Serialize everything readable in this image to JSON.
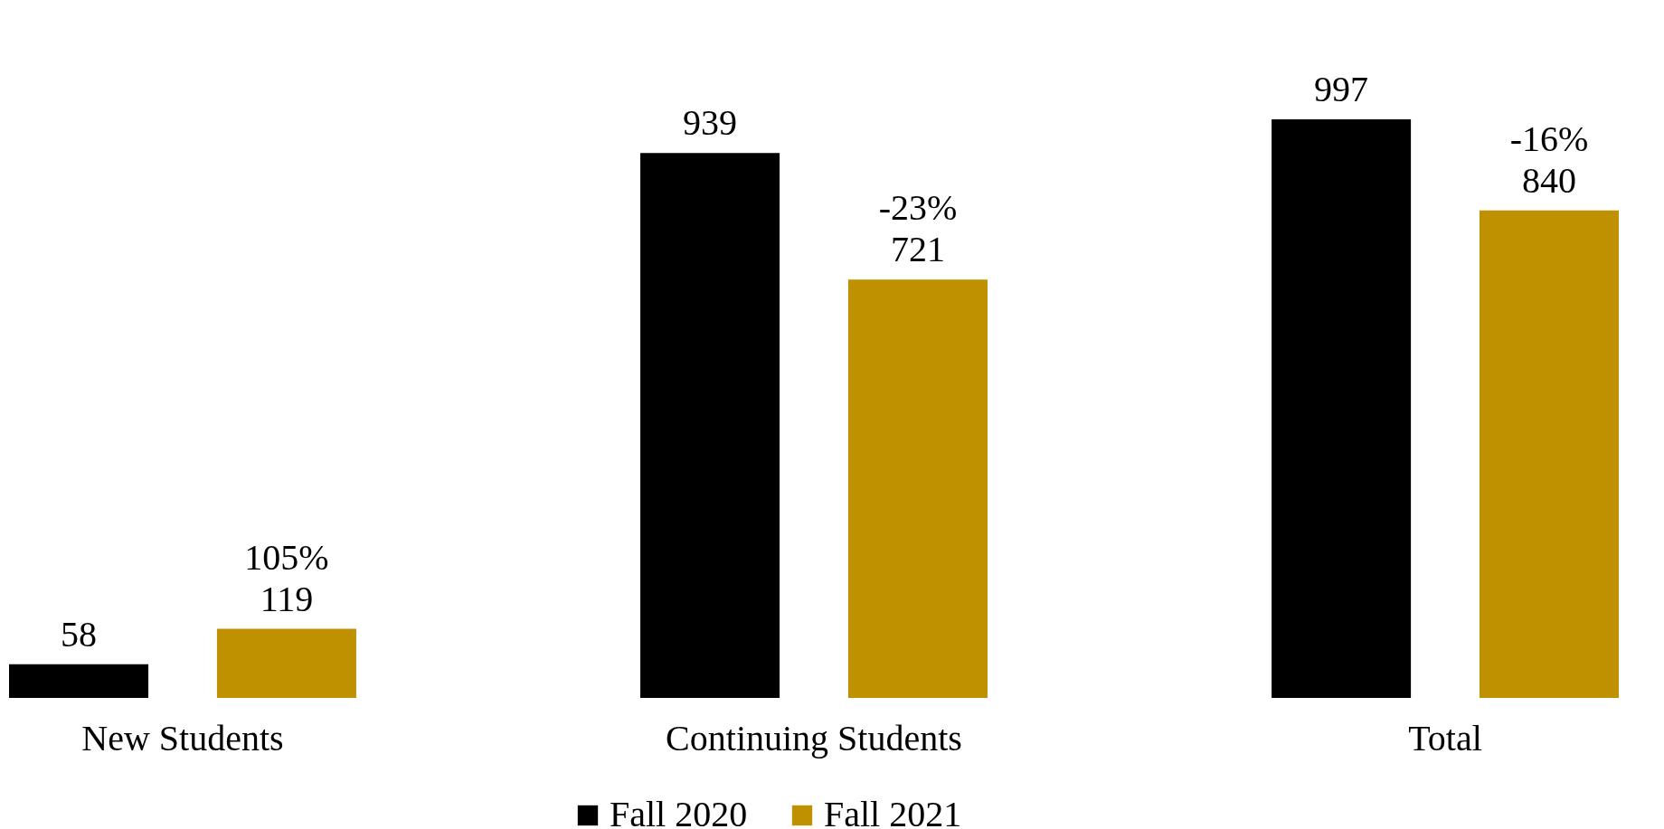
{
  "chart_data": {
    "type": "bar",
    "categories": [
      "New Students",
      "Continuing Students",
      "Total"
    ],
    "series": [
      {
        "name": "Fall 2020",
        "color": "#000000",
        "values": [
          58,
          939,
          997
        ],
        "value_labels": [
          "58",
          "939",
          "997"
        ]
      },
      {
        "name": "Fall 2021",
        "color": "#bf9000",
        "values": [
          119,
          721,
          840
        ],
        "value_labels": [
          "105%\n119",
          "-23%\n721",
          "-16%\n840"
        ]
      }
    ],
    "grid": false,
    "legend": "bottom"
  }
}
